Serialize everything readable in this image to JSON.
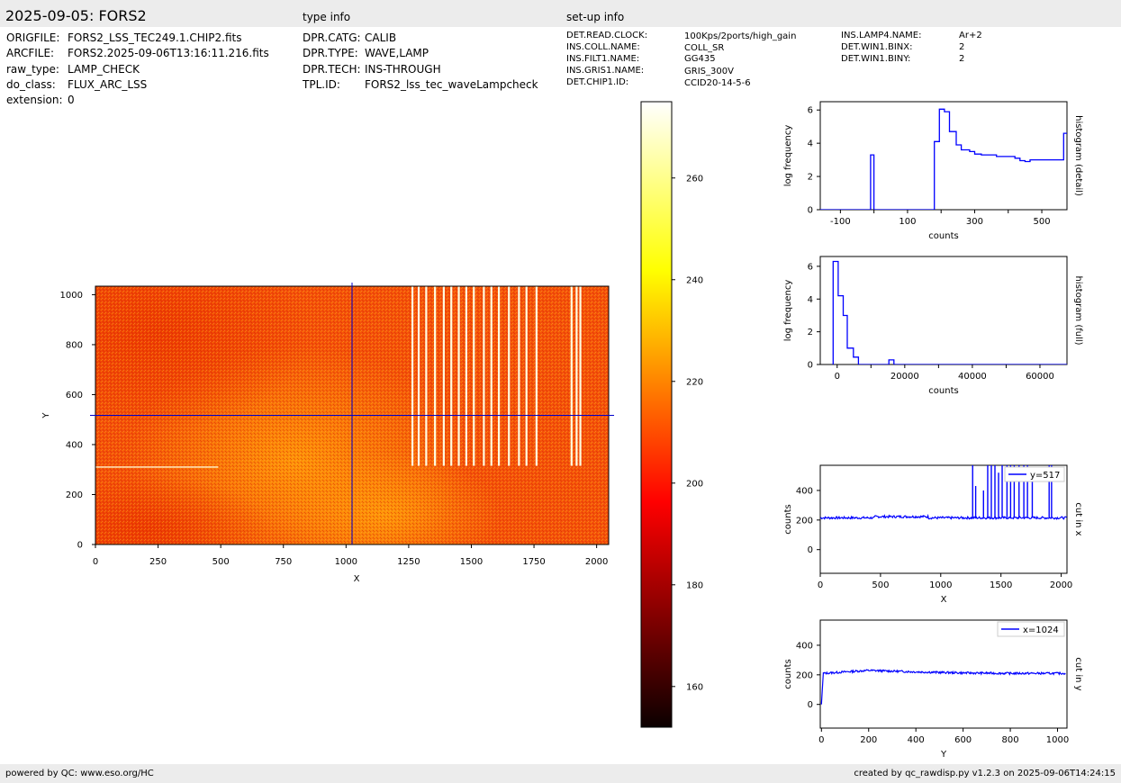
{
  "header": {
    "title": "2025-09-05: FORS2",
    "type_info_heading": "type info",
    "setup_info_heading": "set-up info"
  },
  "file_info": [
    {
      "key": "ORIGFILE:",
      "value": "FORS2_LSS_TEC249.1.CHIP2.fits"
    },
    {
      "key": "ARCFILE:",
      "value": "FORS2.2025-09-06T13:16:11.216.fits"
    },
    {
      "key": "raw_type:",
      "value": "LAMP_CHECK"
    },
    {
      "key": "do_class:",
      "value": "FLUX_ARC_LSS"
    },
    {
      "key": "extension:",
      "value": "0"
    }
  ],
  "type_info": [
    {
      "key": "DPR.CATG:",
      "value": "CALIB"
    },
    {
      "key": "DPR.TYPE:",
      "value": "WAVE,LAMP"
    },
    {
      "key": "DPR.TECH:",
      "value": "INS-THROUGH"
    },
    {
      "key": "TPL.ID:",
      "value": "FORS2_lss_tec_waveLampcheck"
    }
  ],
  "setup_info_col1": [
    {
      "key": "DET.READ.CLOCK:",
      "value": "100Kps/2ports/high_gain"
    },
    {
      "key": "INS.COLL.NAME:",
      "value": "COLL_SR"
    },
    {
      "key": "INS.FILT1.NAME:",
      "value": "GG435"
    },
    {
      "key": "INS.GRIS1.NAME:",
      "value": "GRIS_300V"
    },
    {
      "key": "DET.CHIP1.ID:",
      "value": "CCID20-14-5-6"
    }
  ],
  "setup_info_col2": [
    {
      "key": "INS.LAMP4.NAME:",
      "value": "Ar+2"
    },
    {
      "key": "DET.WIN1.BINX:",
      "value": "2"
    },
    {
      "key": "DET.WIN1.BINY:",
      "value": "2"
    }
  ],
  "footer": {
    "left": "powered by QC: www.eso.org/HC",
    "right": "created by qc_rawdisp.py v1.2.3 on 2025-09-06T14:24:15"
  },
  "colors": {
    "series": "#0000ff",
    "crosshair": "#0000cc",
    "header_bg": "#ececec"
  },
  "chart_data": [
    {
      "type": "heatmap",
      "name": "raw image",
      "xlabel": "X",
      "ylabel": "Y",
      "xlim": [
        0,
        2048
      ],
      "ylim": [
        0,
        1034
      ],
      "xticks": [
        0,
        250,
        500,
        750,
        1000,
        1250,
        1500,
        1750,
        2000
      ],
      "yticks": [
        0,
        200,
        400,
        600,
        800,
        1000
      ],
      "colormap": "hot",
      "crosshair": {
        "x": 1024,
        "y": 517
      },
      "arc_lines_x": [
        1265,
        1290,
        1320,
        1355,
        1390,
        1420,
        1450,
        1480,
        1510,
        1550,
        1580,
        1610,
        1650,
        1690,
        1720,
        1760,
        1900,
        1920,
        1935
      ],
      "arc_lines_yrange": [
        315,
        1034
      ],
      "saturated_row": {
        "y": 310,
        "x": [
          0,
          490
        ]
      }
    },
    {
      "type": "colorbar",
      "range": [
        152,
        275
      ],
      "ticks": [
        160,
        180,
        200,
        220,
        240,
        260
      ]
    },
    {
      "type": "line",
      "name": "histogram (detail)",
      "xlabel": "counts",
      "ylabel": "log frequency",
      "xlim": [
        -160,
        575
      ],
      "ylim": [
        0,
        6.5
      ],
      "xticks": [
        -100,
        100,
        300,
        500
      ],
      "xticks_minor": [
        0,
        200,
        400
      ],
      "yticks": [
        0,
        2,
        4,
        6
      ],
      "steps": [
        [
          -160,
          0
        ],
        [
          -10,
          0
        ],
        [
          -10,
          3.3
        ],
        [
          0,
          3.3
        ],
        [
          0,
          0
        ],
        [
          180,
          0
        ],
        [
          180,
          4.1
        ],
        [
          195,
          4.1
        ],
        [
          195,
          6.05
        ],
        [
          210,
          6.05
        ],
        [
          210,
          5.9
        ],
        [
          225,
          5.9
        ],
        [
          225,
          4.7
        ],
        [
          245,
          4.7
        ],
        [
          245,
          3.9
        ],
        [
          260,
          3.9
        ],
        [
          260,
          3.6
        ],
        [
          285,
          3.6
        ],
        [
          285,
          3.5
        ],
        [
          300,
          3.5
        ],
        [
          300,
          3.35
        ],
        [
          320,
          3.35
        ],
        [
          320,
          3.3
        ],
        [
          365,
          3.3
        ],
        [
          365,
          3.2
        ],
        [
          420,
          3.2
        ],
        [
          420,
          3.1
        ],
        [
          435,
          3.1
        ],
        [
          435,
          2.95
        ],
        [
          450,
          2.95
        ],
        [
          450,
          2.9
        ],
        [
          465,
          2.9
        ],
        [
          465,
          3.0
        ],
        [
          565,
          3.0
        ],
        [
          565,
          4.6
        ],
        [
          575,
          4.6
        ]
      ]
    },
    {
      "type": "line",
      "name": "histogram (full)",
      "xlabel": "counts",
      "ylabel": "log frequency",
      "xlim": [
        -5000,
        68000
      ],
      "ylim": [
        0,
        6.6
      ],
      "xticks": [
        0,
        20000,
        40000,
        60000
      ],
      "xticks_minor": [
        10000,
        30000,
        50000
      ],
      "yticks": [
        0,
        2,
        4,
        6
      ],
      "steps": [
        [
          -1200,
          0
        ],
        [
          -1200,
          6.3
        ],
        [
          300,
          6.3
        ],
        [
          300,
          4.2
        ],
        [
          1800,
          4.2
        ],
        [
          1800,
          3.0
        ],
        [
          3000,
          3.0
        ],
        [
          3000,
          1.0
        ],
        [
          4800,
          1.0
        ],
        [
          4800,
          0.45
        ],
        [
          6300,
          0.45
        ],
        [
          6300,
          0
        ],
        [
          15300,
          0
        ],
        [
          15300,
          0.28
        ],
        [
          16800,
          0.28
        ],
        [
          16800,
          0
        ],
        [
          68000,
          0
        ]
      ]
    },
    {
      "type": "line",
      "name": "cut in x",
      "legend": "y=517",
      "xlabel": "X",
      "ylabel": "counts",
      "xlim": [
        0,
        2048
      ],
      "ylim": [
        -160,
        570
      ],
      "xticks": [
        0,
        500,
        1000,
        1500,
        2000
      ],
      "yticks": [
        0,
        200,
        400
      ],
      "baseline": 215,
      "peaks": [
        [
          1265,
          590
        ],
        [
          1290,
          430
        ],
        [
          1355,
          400
        ],
        [
          1390,
          590
        ],
        [
          1420,
          590
        ],
        [
          1450,
          590
        ],
        [
          1480,
          520
        ],
        [
          1510,
          590
        ],
        [
          1550,
          590
        ],
        [
          1580,
          590
        ],
        [
          1610,
          590
        ],
        [
          1650,
          590
        ],
        [
          1690,
          590
        ],
        [
          1720,
          590
        ],
        [
          1760,
          520
        ],
        [
          1900,
          590
        ],
        [
          1920,
          590
        ]
      ]
    },
    {
      "type": "line",
      "name": "cut in y",
      "legend": "x=1024",
      "xlabel": "Y",
      "ylabel": "counts",
      "xlim": [
        -5,
        1040
      ],
      "ylim": [
        -160,
        570
      ],
      "xticks": [
        0,
        200,
        400,
        600,
        800,
        1000
      ],
      "yticks": [
        0,
        200,
        400
      ],
      "start_value": 0,
      "profile": [
        [
          8,
          210
        ],
        [
          100,
          220
        ],
        [
          200,
          230
        ],
        [
          400,
          220
        ],
        [
          600,
          213
        ],
        [
          800,
          210
        ],
        [
          1034,
          210
        ]
      ]
    }
  ]
}
